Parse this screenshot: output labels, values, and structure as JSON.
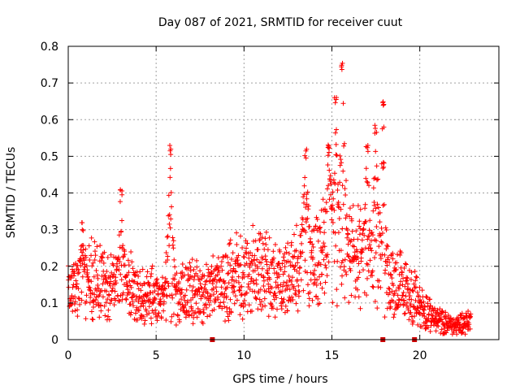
{
  "chart_data": {
    "type": "scatter",
    "title": "Day 087 of 2021, SRMTID for receiver cuut",
    "xlabel": "GPS time / hours",
    "ylabel": "SRMTID / TECUs",
    "xlim": [
      0,
      24.5
    ],
    "ylim": [
      0,
      0.8
    ],
    "xticks": [
      0,
      5,
      10,
      15,
      20
    ],
    "yticks": [
      0,
      0.1,
      0.2,
      0.3,
      0.4,
      0.5,
      0.6,
      0.7,
      0.8
    ],
    "xtick_labels": [
      "0",
      "5",
      "10",
      "15",
      "20"
    ],
    "ytick_labels": [
      "0",
      "0.1",
      "0.2",
      "0.3",
      "0.4",
      "0.5",
      "0.6",
      "0.7",
      "0.8"
    ],
    "grid": true,
    "marker": "+",
    "color": "#ff0000",
    "gap_markers_x": [
      8.2,
      17.9,
      19.7
    ],
    "series": [
      {
        "name": "SRMTID",
        "envelope_description": "dense cloud of points, x from 0 to 23 hours",
        "baseline": [
          [
            0,
            0.12
          ],
          [
            1,
            0.16
          ],
          [
            2,
            0.14
          ],
          [
            3,
            0.15
          ],
          [
            4,
            0.12
          ],
          [
            5,
            0.11
          ],
          [
            6,
            0.11
          ],
          [
            7,
            0.12
          ],
          [
            8,
            0.12
          ],
          [
            9,
            0.14
          ],
          [
            10,
            0.17
          ],
          [
            11,
            0.18
          ],
          [
            12,
            0.15
          ],
          [
            13,
            0.18
          ],
          [
            14,
            0.22
          ],
          [
            15,
            0.25
          ],
          [
            16,
            0.22
          ],
          [
            17,
            0.2
          ],
          [
            18,
            0.18
          ],
          [
            19,
            0.13
          ],
          [
            20,
            0.09
          ],
          [
            21,
            0.05
          ],
          [
            22,
            0.035
          ],
          [
            22.9,
            0.05
          ]
        ],
        "spikes": [
          [
            0.8,
            0.32
          ],
          [
            3.0,
            0.41
          ],
          [
            5.8,
            0.53
          ],
          [
            13.5,
            0.52
          ],
          [
            14.8,
            0.55
          ],
          [
            15.2,
            0.67
          ],
          [
            15.6,
            0.76
          ],
          [
            17.0,
            0.53
          ],
          [
            17.5,
            0.59
          ],
          [
            17.9,
            0.66
          ]
        ]
      }
    ]
  }
}
